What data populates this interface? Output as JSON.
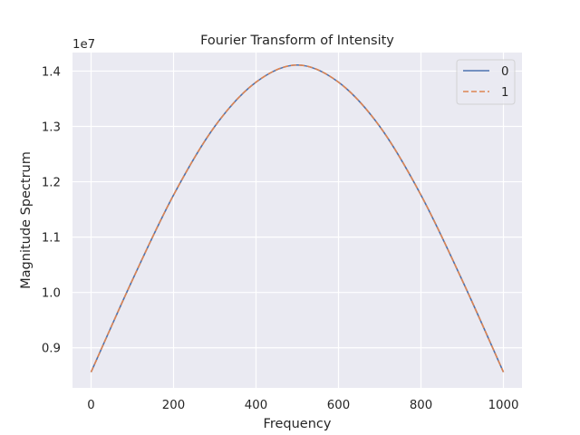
{
  "chart_data": {
    "type": "line",
    "title": "Fourier Transform of Intensity",
    "xlabel": "Frequency",
    "ylabel": "Magnitude Spectrum",
    "y_offset_label": "1e7",
    "xlim": [
      -45,
      1045
    ],
    "ylim": [
      0.8275,
      1.4335
    ],
    "xticks": [
      0,
      200,
      400,
      600,
      800,
      1000
    ],
    "xtick_labels": [
      "0",
      "200",
      "400",
      "600",
      "800",
      "1000"
    ],
    "yticks": [
      0.9,
      1.0,
      1.1,
      1.2,
      1.3,
      1.4
    ],
    "ytick_labels": [
      "0.9",
      "1.0",
      "1.1",
      "1.2",
      "1.3",
      "1.4"
    ],
    "grid": true,
    "legend_position": "top-right",
    "x": [
      0,
      100,
      200,
      300,
      400,
      500,
      600,
      700,
      800,
      900,
      1000
    ],
    "series": [
      {
        "name": "0",
        "color": "#4c72b0",
        "dash": "solid",
        "values": [
          0.856,
          1.022,
          1.176,
          1.3,
          1.38,
          1.411,
          1.38,
          1.3,
          1.176,
          1.022,
          0.856
        ]
      },
      {
        "name": "1",
        "color": "#dd8452",
        "dash": "dashed",
        "values": [
          0.856,
          1.022,
          1.176,
          1.3,
          1.38,
          1.411,
          1.38,
          1.3,
          1.176,
          1.022,
          0.856
        ]
      }
    ]
  }
}
